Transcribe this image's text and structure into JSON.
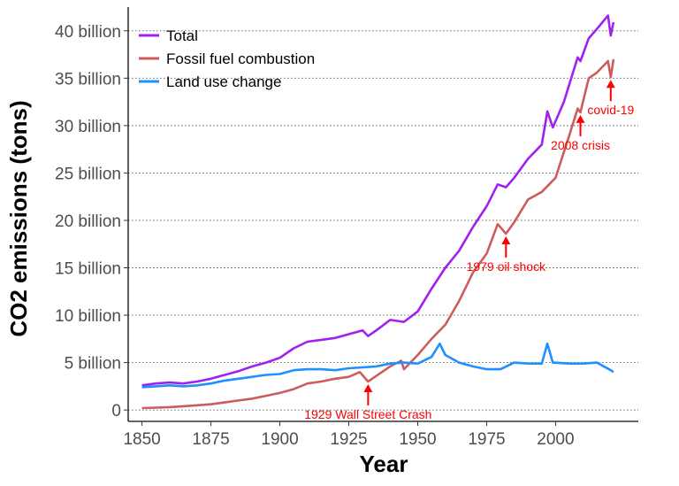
{
  "chart_data": {
    "type": "line",
    "xlabel": "Year",
    "ylabel": "CO2 emissions (tons)",
    "xlim": [
      1845,
      2030
    ],
    "ylim": [
      -1.2,
      42.5
    ],
    "x_ticks": [
      1850,
      1875,
      1900,
      1925,
      1950,
      1975,
      2000
    ],
    "y_ticks": [
      0,
      5,
      10,
      15,
      20,
      25,
      30,
      35,
      40
    ],
    "y_tick_labels": [
      "0",
      "5 billion",
      "10 billion",
      "15 billion",
      "20 billion",
      "25 billion",
      "30 billion",
      "35 billion",
      "40 billion"
    ],
    "y_unit": "billion tons",
    "grid": "horizontal dotted",
    "legend_position": "top-left",
    "series": [
      {
        "name": "Total",
        "color": "#a020f0",
        "points": [
          [
            1850,
            2.6
          ],
          [
            1855,
            2.8
          ],
          [
            1860,
            2.9
          ],
          [
            1865,
            2.8
          ],
          [
            1870,
            3.0
          ],
          [
            1875,
            3.3
          ],
          [
            1880,
            3.7
          ],
          [
            1885,
            4.1
          ],
          [
            1890,
            4.6
          ],
          [
            1895,
            5.0
          ],
          [
            1900,
            5.5
          ],
          [
            1905,
            6.5
          ],
          [
            1910,
            7.2
          ],
          [
            1915,
            7.4
          ],
          [
            1920,
            7.6
          ],
          [
            1925,
            8.0
          ],
          [
            1930,
            8.4
          ],
          [
            1932,
            7.8
          ],
          [
            1935,
            8.4
          ],
          [
            1940,
            9.5
          ],
          [
            1945,
            9.3
          ],
          [
            1950,
            10.4
          ],
          [
            1955,
            12.8
          ],
          [
            1960,
            15.0
          ],
          [
            1965,
            16.8
          ],
          [
            1970,
            19.3
          ],
          [
            1975,
            21.5
          ],
          [
            1979,
            23.8
          ],
          [
            1982,
            23.5
          ],
          [
            1985,
            24.5
          ],
          [
            1990,
            26.5
          ],
          [
            1995,
            28.0
          ],
          [
            1997,
            31.5
          ],
          [
            1999,
            29.8
          ],
          [
            2003,
            32.5
          ],
          [
            2008,
            37.2
          ],
          [
            2009,
            36.8
          ],
          [
            2012,
            39.2
          ],
          [
            2015,
            40.2
          ],
          [
            2019,
            41.6
          ],
          [
            2020,
            39.5
          ],
          [
            2021,
            40.9
          ]
        ]
      },
      {
        "name": "Fossil fuel combustion",
        "color": "#cd5c5c",
        "points": [
          [
            1850,
            0.2
          ],
          [
            1855,
            0.25
          ],
          [
            1860,
            0.3
          ],
          [
            1865,
            0.4
          ],
          [
            1870,
            0.5
          ],
          [
            1875,
            0.6
          ],
          [
            1880,
            0.8
          ],
          [
            1885,
            1.0
          ],
          [
            1890,
            1.2
          ],
          [
            1895,
            1.5
          ],
          [
            1900,
            1.8
          ],
          [
            1905,
            2.2
          ],
          [
            1910,
            2.8
          ],
          [
            1915,
            3.0
          ],
          [
            1920,
            3.3
          ],
          [
            1925,
            3.5
          ],
          [
            1929,
            4.0
          ],
          [
            1932,
            3.0
          ],
          [
            1935,
            3.6
          ],
          [
            1940,
            4.6
          ],
          [
            1944,
            5.2
          ],
          [
            1945,
            4.3
          ],
          [
            1950,
            5.8
          ],
          [
            1955,
            7.5
          ],
          [
            1960,
            9.0
          ],
          [
            1965,
            11.5
          ],
          [
            1970,
            14.5
          ],
          [
            1975,
            16.5
          ],
          [
            1979,
            19.6
          ],
          [
            1982,
            18.6
          ],
          [
            1985,
            19.8
          ],
          [
            1990,
            22.2
          ],
          [
            1995,
            23.0
          ],
          [
            2000,
            24.5
          ],
          [
            2005,
            29.0
          ],
          [
            2008,
            31.8
          ],
          [
            2009,
            31.4
          ],
          [
            2012,
            35.0
          ],
          [
            2015,
            35.6
          ],
          [
            2019,
            36.8
          ],
          [
            2020,
            35.1
          ],
          [
            2021,
            37.0
          ]
        ]
      },
      {
        "name": "Land use change",
        "color": "#1e90ff",
        "points": [
          [
            1850,
            2.4
          ],
          [
            1855,
            2.5
          ],
          [
            1860,
            2.6
          ],
          [
            1865,
            2.5
          ],
          [
            1870,
            2.6
          ],
          [
            1875,
            2.8
          ],
          [
            1880,
            3.1
          ],
          [
            1885,
            3.3
          ],
          [
            1890,
            3.5
          ],
          [
            1895,
            3.7
          ],
          [
            1900,
            3.8
          ],
          [
            1905,
            4.2
          ],
          [
            1910,
            4.3
          ],
          [
            1915,
            4.3
          ],
          [
            1920,
            4.2
          ],
          [
            1925,
            4.4
          ],
          [
            1930,
            4.5
          ],
          [
            1935,
            4.6
          ],
          [
            1940,
            4.9
          ],
          [
            1945,
            5.0
          ],
          [
            1950,
            4.9
          ],
          [
            1955,
            5.6
          ],
          [
            1958,
            7.0
          ],
          [
            1960,
            5.8
          ],
          [
            1965,
            5.0
          ],
          [
            1970,
            4.6
          ],
          [
            1975,
            4.3
          ],
          [
            1980,
            4.3
          ],
          [
            1985,
            5.0
          ],
          [
            1990,
            4.9
          ],
          [
            1995,
            4.9
          ],
          [
            1997,
            7.0
          ],
          [
            1999,
            5.0
          ],
          [
            2005,
            4.9
          ],
          [
            2010,
            4.9
          ],
          [
            2015,
            5.0
          ],
          [
            2020,
            4.2
          ],
          [
            2021,
            4.0
          ]
        ]
      }
    ],
    "annotations": [
      {
        "label": "1929 Wall Street Crash",
        "x": 1932,
        "y": 3.0,
        "arrow": "up"
      },
      {
        "label": "1979 oil shock",
        "x": 1982,
        "y": 18.6,
        "arrow": "up"
      },
      {
        "label": "2008 crisis",
        "x": 2009,
        "y": 31.4,
        "arrow": "up"
      },
      {
        "label": "covid-19",
        "x": 2020,
        "y": 35.1,
        "arrow": "up"
      }
    ]
  }
}
